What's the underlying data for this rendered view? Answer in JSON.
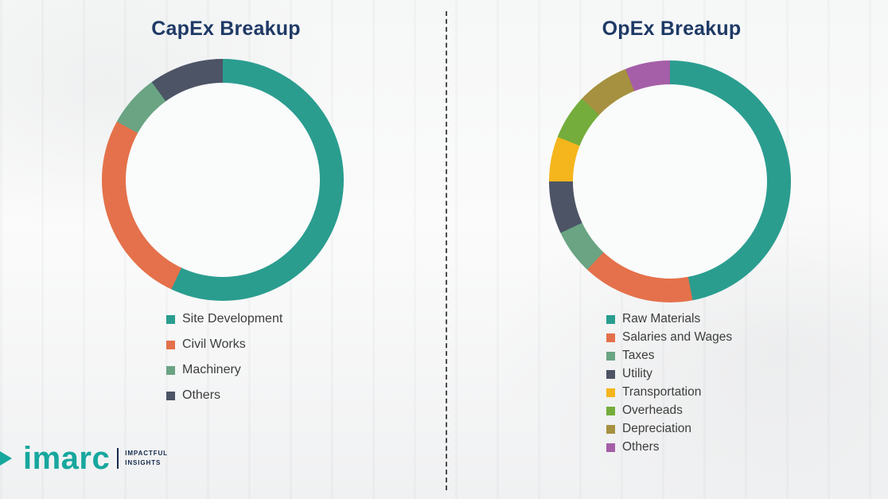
{
  "chart_data": [
    {
      "type": "pie",
      "subtype": "donut",
      "title": "CapEx Breakup",
      "legend_position": "bottom",
      "values_unit": "percent-of-whole, estimated from arc angles (no numeric labels shown)",
      "segments": [
        {
          "label": "Site Development",
          "value": 57,
          "color": "#2a9d8f"
        },
        {
          "label": "Civil Works",
          "value": 26,
          "color": "#e4714b"
        },
        {
          "label": "Machinery",
          "value": 7,
          "color": "#6aa483"
        },
        {
          "label": "Others",
          "value": 10,
          "color": "#4d5466"
        }
      ]
    },
    {
      "type": "pie",
      "subtype": "donut",
      "title": "OpEx Breakup",
      "legend_position": "bottom",
      "values_unit": "percent-of-whole, estimated from arc angles (no numeric labels shown)",
      "segments": [
        {
          "label": "Raw Materials",
          "value": 47,
          "color": "#2a9d8f"
        },
        {
          "label": "Salaries and Wages",
          "value": 15,
          "color": "#e4714b"
        },
        {
          "label": "Taxes",
          "value": 6,
          "color": "#6aa483"
        },
        {
          "label": "Utility",
          "value": 7,
          "color": "#4d5466"
        },
        {
          "label": "Transportation",
          "value": 6,
          "color": "#f5b51d"
        },
        {
          "label": "Overheads",
          "value": 6,
          "color": "#74ad3b"
        },
        {
          "label": "Depreciation",
          "value": 7,
          "color": "#a5913f"
        },
        {
          "label": "Others",
          "value": 6,
          "color": "#a55fa8"
        }
      ]
    }
  ],
  "logo": {
    "brand": "imarc",
    "tagline_line1": "IMPACTFUL",
    "tagline_line2": "INSIGHTS",
    "brand_color": "#17a79e",
    "tagline_color": "#13294b"
  },
  "styles": {
    "title_color": "#1e3a66",
    "legend_text_color": "#3d3d3d",
    "divider_color": "#4a4a4a",
    "background_color": "#fafbfb"
  }
}
